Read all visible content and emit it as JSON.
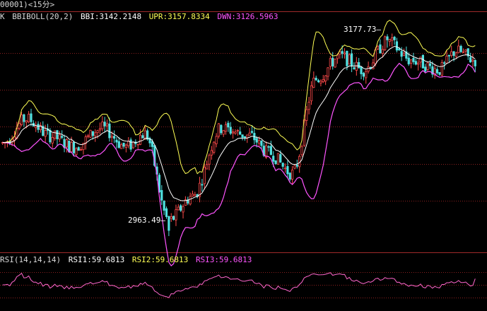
{
  "title_bar": {
    "text": "00001)<15分>"
  },
  "main_header": {
    "prefix": "K",
    "indicator": "BBIBOLL(20,2)",
    "bbi": "BBI:3142.2148",
    "upr": "UPR:3157.8334",
    "dwn": "DWN:3126.5963"
  },
  "rsi_header": {
    "indicator": "RSI(14,14,14)",
    "rsi1": "RSI1:59.6813",
    "rsi2": "RSI2:59.6813",
    "rsi3": "RSI3:59.6813"
  },
  "annotations": {
    "high_label": "3177.73",
    "low_label": "2963.49"
  },
  "colors": {
    "background": "#000000",
    "grid": "#8a1f1f",
    "candle_up": "#ff4a4a",
    "candle_down": "#4fe0e0",
    "bbi": "#ffffff",
    "upr": "#ffff55",
    "dwn": "#ff55ff",
    "rsi": "#ff66cc",
    "header_text": "#d8d8d8"
  },
  "chart_data": [
    {
      "type": "candlestick",
      "title": "",
      "price_extremes": {
        "high": 3177.73,
        "low": 2963.49
      },
      "ylim": [
        2950,
        3190
      ],
      "gridlines": [
        3157.8,
        3118.6,
        3079.4,
        3040.2,
        3001.0
      ],
      "trend_waypoints": [
        [
          0,
          3062
        ],
        [
          10,
          3088
        ],
        [
          20,
          3070
        ],
        [
          30,
          3058
        ],
        [
          42,
          3078
        ],
        [
          52,
          3058
        ],
        [
          60,
          3072
        ],
        [
          70,
          2980
        ],
        [
          80,
          3006
        ],
        [
          92,
          3078
        ],
        [
          104,
          3070
        ],
        [
          112,
          3052
        ],
        [
          122,
          3030
        ],
        [
          132,
          3130
        ],
        [
          142,
          3154
        ],
        [
          152,
          3140
        ],
        [
          162,
          3170
        ],
        [
          172,
          3150
        ],
        [
          184,
          3140
        ],
        [
          191,
          3160
        ],
        [
          199,
          3150
        ]
      ],
      "overlays": [
        "BBI",
        "UPR",
        "DWN"
      ]
    },
    {
      "type": "line",
      "title": "",
      "indicator": "RSI",
      "ylim": [
        20,
        80
      ],
      "gridlines": [
        70,
        50,
        30
      ],
      "last_value": 59.6813
    }
  ]
}
